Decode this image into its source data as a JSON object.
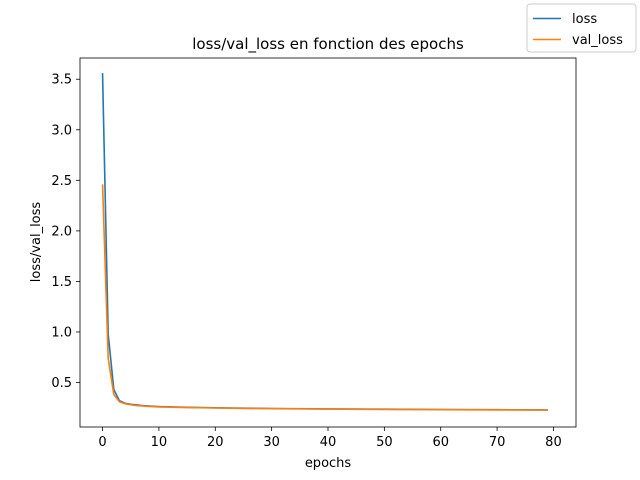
{
  "chart_data": {
    "type": "line",
    "title": "loss/val_loss en fonction des epochs",
    "xlabel": "epochs",
    "ylabel": "loss/val_loss",
    "xlim": [
      -4,
      84
    ],
    "ylim": [
      0.06,
      3.71
    ],
    "xticks": [
      0,
      10,
      20,
      30,
      40,
      50,
      60,
      70,
      80
    ],
    "yticks": [
      0.5,
      1.0,
      1.5,
      2.0,
      2.5,
      3.0,
      3.5
    ],
    "xtick_labels": [
      "0",
      "10",
      "20",
      "30",
      "40",
      "50",
      "60",
      "70",
      "80"
    ],
    "ytick_labels": [
      "0.5",
      "1.0",
      "1.5",
      "2.0",
      "2.5",
      "3.0",
      "3.5"
    ],
    "grid": false,
    "legend_position": "top-right outside",
    "series": [
      {
        "name": "loss",
        "color": "#1f77b4",
        "x": [
          0,
          1,
          2,
          3,
          4,
          5,
          6,
          7,
          8,
          9,
          10,
          15,
          20,
          25,
          30,
          40,
          50,
          60,
          70,
          79
        ],
        "y": [
          3.56,
          0.98,
          0.43,
          0.32,
          0.295,
          0.285,
          0.278,
          0.272,
          0.268,
          0.265,
          0.262,
          0.255,
          0.25,
          0.246,
          0.243,
          0.239,
          0.236,
          0.233,
          0.231,
          0.229
        ]
      },
      {
        "name": "val_loss",
        "color": "#ff7f0e",
        "x": [
          0,
          1,
          2,
          3,
          4,
          5,
          6,
          7,
          8,
          9,
          10,
          15,
          20,
          25,
          30,
          40,
          50,
          60,
          70,
          79
        ],
        "y": [
          2.46,
          0.74,
          0.38,
          0.31,
          0.29,
          0.28,
          0.272,
          0.268,
          0.264,
          0.261,
          0.258,
          0.252,
          0.248,
          0.244,
          0.241,
          0.237,
          0.234,
          0.231,
          0.229,
          0.227
        ]
      }
    ]
  }
}
